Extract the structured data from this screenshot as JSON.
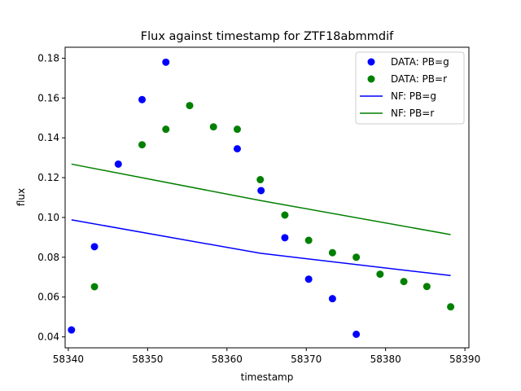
{
  "chart_data": {
    "type": "scatter",
    "title": "Flux against timestamp for ZTF18abmmdif",
    "xlabel": "timestamp",
    "ylabel": "flux",
    "xlim": [
      58339.6,
      58390.5
    ],
    "ylim": [
      0.0345,
      0.1855
    ],
    "xticks": [
      58340,
      58350,
      58360,
      58370,
      58380,
      58390
    ],
    "yticks": [
      0.04,
      0.06,
      0.08,
      0.1,
      0.12,
      0.14,
      0.16,
      0.18
    ],
    "grid": false,
    "legend_position": "top-right",
    "series": [
      {
        "name": "DATA: PB=g",
        "kind": "points",
        "color": "#0000ff",
        "x": [
          58340.4,
          58343.3,
          58346.3,
          58349.3,
          58352.3,
          58361.3,
          58364.3,
          58367.3,
          58370.3,
          58373.3,
          58376.3
        ],
        "y": [
          0.0435,
          0.0853,
          0.1268,
          0.1592,
          0.178,
          0.1345,
          0.1135,
          0.0898,
          0.069,
          0.0592,
          0.0413
        ]
      },
      {
        "name": "DATA: PB=r",
        "kind": "points",
        "color": "#008000",
        "x": [
          58343.3,
          58349.3,
          58352.3,
          58355.3,
          58358.3,
          58361.3,
          58364.2,
          58367.3,
          58370.3,
          58373.3,
          58376.3,
          58379.3,
          58382.3,
          58385.2,
          58388.2
        ],
        "y": [
          0.0652,
          0.1365,
          0.1443,
          0.1562,
          0.1455,
          0.1443,
          0.119,
          0.1012,
          0.0885,
          0.0823,
          0.08,
          0.0715,
          0.0678,
          0.0653,
          0.0551
        ]
      },
      {
        "name": "NF: PB=g",
        "kind": "line",
        "color": "#0000ff",
        "x": [
          58340.4,
          58364.2,
          58388.2
        ],
        "y": [
          0.0988,
          0.082,
          0.0708
        ]
      },
      {
        "name": "NF: PB=r",
        "kind": "line",
        "color": "#008000",
        "x": [
          58340.4,
          58364.2,
          58388.2
        ],
        "y": [
          0.1268,
          0.1085,
          0.0914
        ]
      }
    ]
  }
}
